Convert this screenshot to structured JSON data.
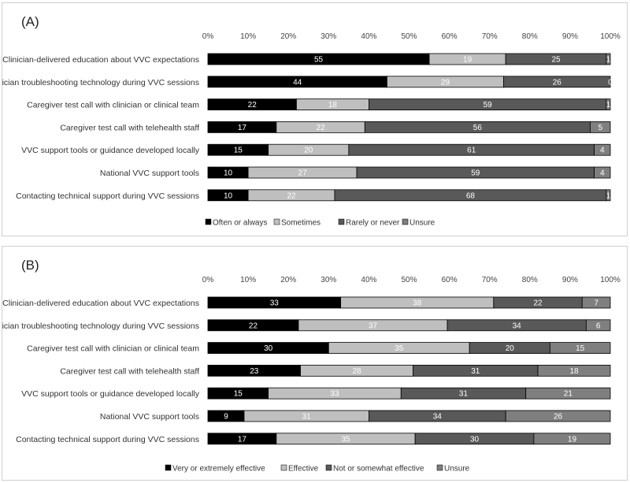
{
  "chart_data": [
    {
      "type": "bar",
      "orientation": "horizontal",
      "stacked": true,
      "panel_label": "(A)",
      "title": "",
      "xlabel": "",
      "ylabel": "",
      "xlim": [
        0,
        100
      ],
      "ticks": [
        "0%",
        "10%",
        "20%",
        "30%",
        "40%",
        "50%",
        "60%",
        "70%",
        "80%",
        "90%",
        "100%"
      ],
      "categories": [
        "Clinician-delivered education about VVC expectations",
        "Clinician troubleshooting technology during VVC sessions",
        "Caregiver test call with clinician or clinical team",
        "Caregiver test call with telehealth staff",
        "VVC support tools or guidance developed locally",
        "National VVC support tools",
        "Contacting technical support during VVC sessions"
      ],
      "series": [
        {
          "name": "Often or always",
          "color": "#000000",
          "values": [
            55,
            44,
            22,
            17,
            15,
            10,
            10
          ],
          "plot": [
            55,
            44.5,
            22,
            17,
            15,
            10,
            10
          ]
        },
        {
          "name": "Sometimes",
          "color": "#bfbfbf",
          "values": [
            19,
            29,
            18,
            22,
            20,
            27,
            22
          ],
          "plot": [
            19,
            29,
            18,
            22,
            20,
            27,
            21.5
          ]
        },
        {
          "name": "Rarely or never",
          "color": "#595959",
          "values": [
            25,
            26,
            59,
            56,
            61,
            59,
            68
          ],
          "plot": [
            25,
            26.5,
            59,
            56,
            61,
            59,
            67.5
          ]
        },
        {
          "name": "Unsure",
          "color": "#7f7f7f",
          "values": [
            1,
            0,
            1,
            5,
            4,
            4,
            1
          ],
          "plot": [
            1,
            0,
            1,
            5,
            4,
            4,
            1
          ]
        }
      ],
      "legend_position": "bottom"
    },
    {
      "type": "bar",
      "orientation": "horizontal",
      "stacked": true,
      "panel_label": "(B)",
      "title": "",
      "xlabel": "",
      "ylabel": "",
      "xlim": [
        0,
        100
      ],
      "ticks": [
        "0%",
        "10%",
        "20%",
        "30%",
        "40%",
        "50%",
        "60%",
        "70%",
        "80%",
        "90%",
        "100%"
      ],
      "categories": [
        "Clinician-delivered education about VVC expectations",
        "Clinician troubleshooting technology during VVC sessions",
        "Caregiver test call with clinician or clinical team",
        "Caregiver test call with telehealth staff",
        "VVC support tools or guidance developed locally",
        "National VVC support tools",
        "Contacting technical support during VVC sessions"
      ],
      "series": [
        {
          "name": "Very or extremely effective",
          "color": "#000000",
          "values": [
            33,
            22,
            30,
            23,
            15,
            9,
            17
          ],
          "plot": [
            33,
            22.5,
            30,
            23,
            15,
            9,
            17
          ]
        },
        {
          "name": "Effective",
          "color": "#bfbfbf",
          "values": [
            38,
            37,
            35,
            28,
            33,
            31,
            35
          ],
          "plot": [
            38,
            37,
            35,
            28,
            33,
            31,
            34.5
          ]
        },
        {
          "name": "Not or somewhat effective",
          "color": "#595959",
          "values": [
            22,
            34,
            20,
            31,
            31,
            34,
            30
          ],
          "plot": [
            22,
            34.5,
            20,
            31,
            31,
            34,
            29.5
          ]
        },
        {
          "name": "Unsure",
          "color": "#7f7f7f",
          "values": [
            7,
            6,
            15,
            18,
            21,
            26,
            19
          ],
          "plot": [
            7,
            6,
            15,
            18,
            21,
            26,
            19
          ]
        }
      ],
      "legend_position": "bottom"
    }
  ]
}
